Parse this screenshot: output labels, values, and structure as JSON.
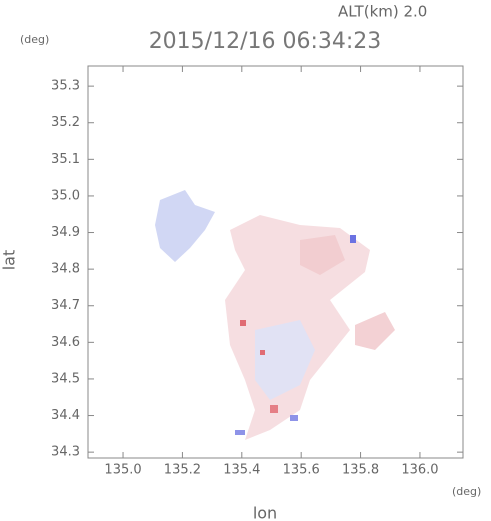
{
  "header": {
    "altitude": "ALT(km)  2.0",
    "title": "2015/12/16 06:34:23",
    "y_unit": "(deg)",
    "x_unit": "(deg)"
  },
  "chart_data": {
    "type": "map",
    "xlabel": "lon",
    "ylabel": "lat",
    "xlim": [
      134.882,
      136.145
    ],
    "ylim": [
      34.284,
      35.355
    ],
    "xticks": [
      {
        "value": 135.0,
        "label": "135.0"
      },
      {
        "value": 135.2,
        "label": "135.2"
      },
      {
        "value": 135.4,
        "label": "135.4"
      },
      {
        "value": 135.6,
        "label": "135.6"
      },
      {
        "value": 135.8,
        "label": "135.8"
      },
      {
        "value": 136.0,
        "label": "136.0"
      }
    ],
    "yticks": [
      34.3,
      34.4,
      34.5,
      34.6,
      34.7,
      34.8,
      34.9,
      {
        "value": 35.0,
        "label": "35.0"
      },
      35.1,
      35.2,
      35.3
    ]
  }
}
